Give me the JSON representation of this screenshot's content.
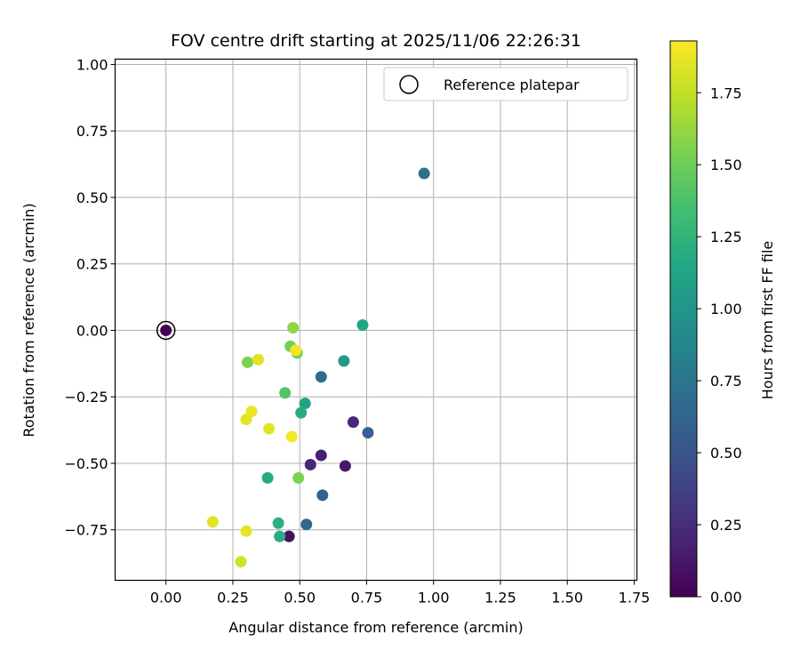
{
  "chart_data": {
    "type": "scatter",
    "title": "FOV centre drift starting at 2025/11/06 22:26:31",
    "xlabel": "Angular distance from reference (arcmin)",
    "ylabel": "Rotation from reference (arcmin)",
    "xlim": [
      -0.19,
      1.76
    ],
    "ylim": [
      -0.94,
      1.02
    ],
    "xticks": [
      0.0,
      0.25,
      0.5,
      0.75,
      1.0,
      1.25,
      1.5,
      1.75
    ],
    "xtick_labels": [
      "0.00",
      "0.25",
      "0.50",
      "0.75",
      "1.00",
      "1.25",
      "1.50",
      "1.75"
    ],
    "yticks": [
      -0.75,
      -0.5,
      -0.25,
      0.0,
      0.25,
      0.5,
      0.75,
      1.0
    ],
    "ytick_labels": [
      "−0.75",
      "−0.50",
      "−0.25",
      "0.00",
      "0.25",
      "0.50",
      "0.75",
      "1.00"
    ],
    "grid": true,
    "legend": {
      "location": "top-right",
      "entries": [
        "Reference platepar"
      ]
    },
    "reference_point": {
      "x": 0.0,
      "y": 0.0,
      "label": "Reference platepar"
    },
    "colorbar": {
      "label": "Hours from first FF file",
      "colormap": "viridis",
      "range": [
        0.0,
        1.93
      ],
      "ticks": [
        0.0,
        0.25,
        0.5,
        0.75,
        1.0,
        1.25,
        1.5,
        1.75
      ],
      "tick_labels": [
        "0.00",
        "0.25",
        "0.50",
        "0.75",
        "1.00",
        "1.25",
        "1.50",
        "1.75"
      ]
    },
    "points": [
      {
        "x": 0.0,
        "y": 0.0,
        "hours": 0.0
      },
      {
        "x": 0.46,
        "y": -0.775,
        "hours": 0.08
      },
      {
        "x": 0.67,
        "y": -0.51,
        "hours": 0.13
      },
      {
        "x": 0.58,
        "y": -0.47,
        "hours": 0.17
      },
      {
        "x": 0.54,
        "y": -0.505,
        "hours": 0.2
      },
      {
        "x": 0.7,
        "y": -0.345,
        "hours": 0.22
      },
      {
        "x": 0.755,
        "y": -0.385,
        "hours": 0.6
      },
      {
        "x": 0.585,
        "y": -0.62,
        "hours": 0.62
      },
      {
        "x": 0.525,
        "y": -0.73,
        "hours": 0.64
      },
      {
        "x": 0.965,
        "y": 0.59,
        "hours": 0.7
      },
      {
        "x": 0.58,
        "y": -0.175,
        "hours": 0.68
      },
      {
        "x": 0.665,
        "y": -0.115,
        "hours": 1.05
      },
      {
        "x": 0.735,
        "y": 0.02,
        "hours": 1.15
      },
      {
        "x": 0.52,
        "y": -0.275,
        "hours": 1.1
      },
      {
        "x": 0.505,
        "y": -0.31,
        "hours": 1.2
      },
      {
        "x": 0.38,
        "y": -0.555,
        "hours": 1.18
      },
      {
        "x": 0.42,
        "y": -0.725,
        "hours": 1.22
      },
      {
        "x": 0.425,
        "y": -0.775,
        "hours": 1.2
      },
      {
        "x": 0.445,
        "y": -0.235,
        "hours": 1.4
      },
      {
        "x": 0.465,
        "y": -0.06,
        "hours": 1.52
      },
      {
        "x": 0.49,
        "y": -0.085,
        "hours": 1.5
      },
      {
        "x": 0.305,
        "y": -0.12,
        "hours": 1.55
      },
      {
        "x": 0.495,
        "y": -0.555,
        "hours": 1.55
      },
      {
        "x": 0.475,
        "y": 0.01,
        "hours": 1.6
      },
      {
        "x": 0.345,
        "y": -0.11,
        "hours": 1.85
      },
      {
        "x": 0.485,
        "y": -0.075,
        "hours": 1.9
      },
      {
        "x": 0.32,
        "y": -0.305,
        "hours": 1.88
      },
      {
        "x": 0.3,
        "y": -0.335,
        "hours": 1.85
      },
      {
        "x": 0.385,
        "y": -0.37,
        "hours": 1.85
      },
      {
        "x": 0.47,
        "y": -0.4,
        "hours": 1.9
      },
      {
        "x": 0.175,
        "y": -0.72,
        "hours": 1.85
      },
      {
        "x": 0.3,
        "y": -0.755,
        "hours": 1.86
      },
      {
        "x": 0.28,
        "y": -0.87,
        "hours": 1.8
      }
    ]
  }
}
